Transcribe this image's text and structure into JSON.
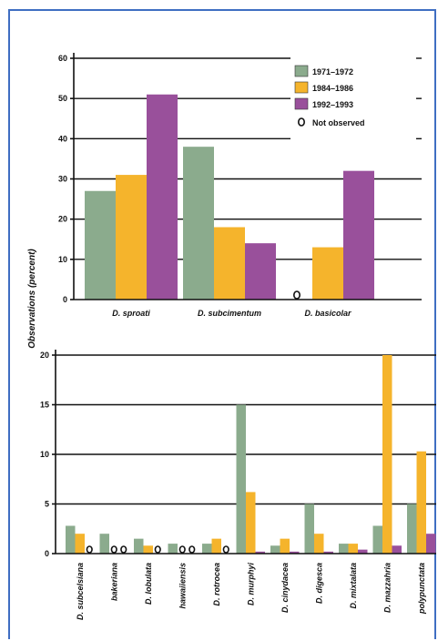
{
  "chart_data": [
    {
      "type": "bar",
      "ylabel": "Observations (percent)",
      "ylim": [
        0,
        60
      ],
      "yticks": [
        0,
        10,
        20,
        30,
        40,
        50,
        60
      ],
      "grid": true,
      "legend_position": "top-right",
      "categories": [
        "D. sproati",
        "D. subcimentum",
        "D. basicolar"
      ],
      "series": [
        {
          "name": "1971–1972",
          "color": "#8bab8d",
          "values": [
            27,
            38,
            null
          ]
        },
        {
          "name": "1984–1986",
          "color": "#f5b42c",
          "values": [
            31,
            18,
            13
          ]
        },
        {
          "name": "1992–1993",
          "color": "#99509b",
          "values": [
            51,
            14,
            32
          ]
        }
      ],
      "not_observed_label": "Not observed",
      "not_observed_symbol": "O"
    },
    {
      "type": "bar",
      "ylim": [
        0,
        20
      ],
      "yticks": [
        0,
        5,
        10,
        15,
        20
      ],
      "grid": true,
      "categories": [
        "D. subcelsiana",
        "bakeriana",
        "D. lobulata",
        "hawaiiensis",
        "D. rotrocea",
        "D. murphyi",
        "D. cinydacea",
        "D. digesca",
        "D. mixtalata",
        "D. mazzahria",
        "polypunctata"
      ],
      "series": [
        {
          "name": "1971–1972",
          "values": [
            2.8,
            2,
            1.5,
            1,
            1,
            15,
            0.8,
            5,
            1,
            2.8,
            5
          ]
        },
        {
          "name": "1984–1986",
          "values": [
            2,
            null,
            0.8,
            null,
            1.5,
            6.2,
            1.5,
            2,
            1,
            20,
            10.3
          ]
        },
        {
          "name": "1992–1993",
          "values": [
            null,
            null,
            null,
            null,
            null,
            0.2,
            0.2,
            0.2,
            0.4,
            0.8,
            2
          ]
        }
      ],
      "not_observed_symbol": "O"
    }
  ]
}
